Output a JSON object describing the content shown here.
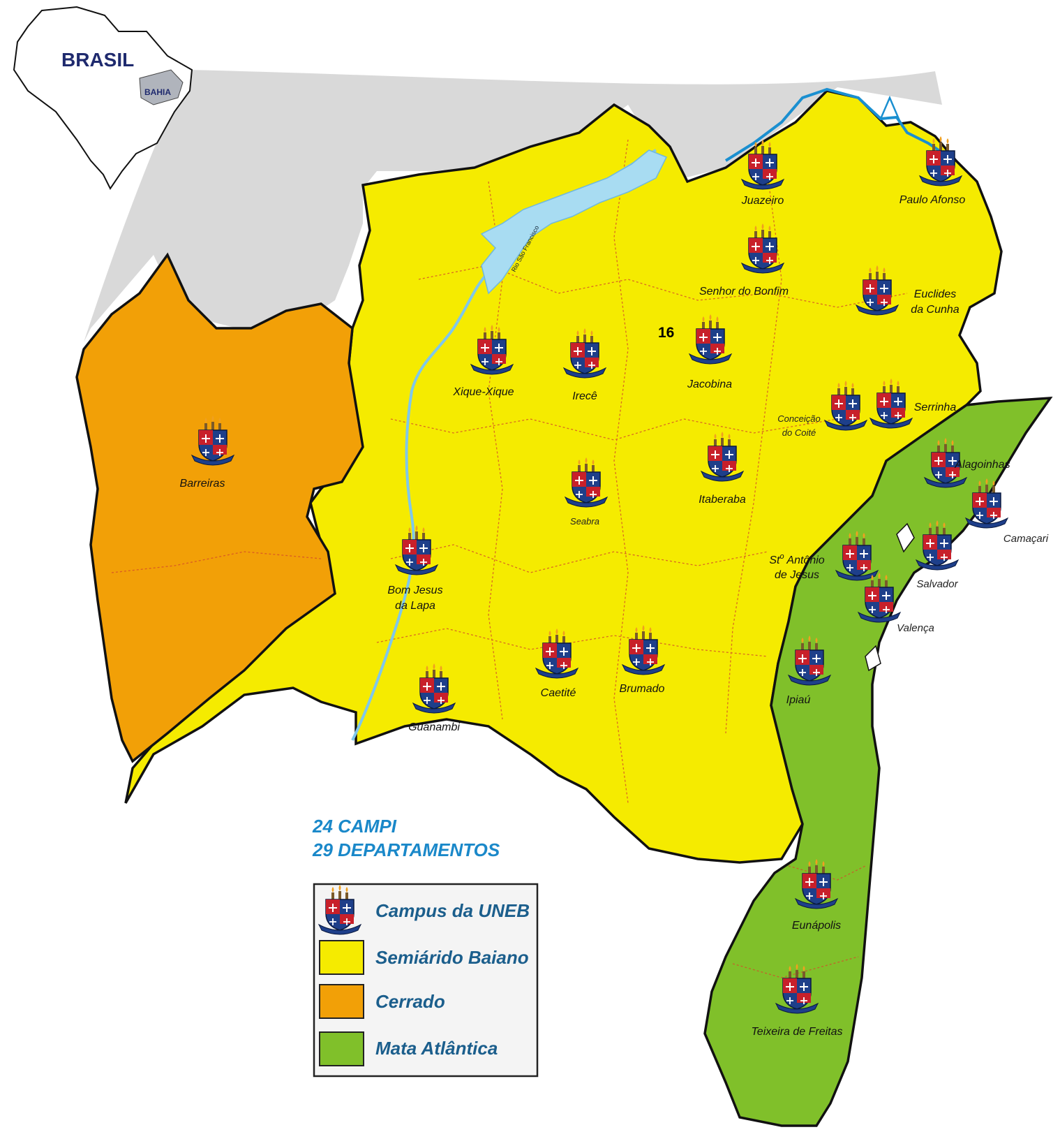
{
  "inset": {
    "country_label": "BRASIL",
    "state_label": "BAHIA"
  },
  "map": {
    "region_number": "16",
    "river_label": "Rio São Francisco",
    "stats": {
      "campi": "24 CAMPI",
      "departamentos": "29 DEPARTAMENTOS"
    }
  },
  "campuses": [
    {
      "name": "Juazeiro"
    },
    {
      "name": "Paulo Afonso"
    },
    {
      "name": "Senhor do Bonfim"
    },
    {
      "name": "Euclides",
      "name2": "da Cunha"
    },
    {
      "name": "Jacobina"
    },
    {
      "name": "Xique-Xique"
    },
    {
      "name": "Irecê"
    },
    {
      "name": "Conceição",
      "name2": "do Coité"
    },
    {
      "name": "Serrinha"
    },
    {
      "name": "Alagoinhas"
    },
    {
      "name": "Barreiras"
    },
    {
      "name": "Itaberaba"
    },
    {
      "name": "Seabra"
    },
    {
      "name": "Camaçari"
    },
    {
      "name": "Bom Jesus",
      "name2": "da Lapa"
    },
    {
      "name": "St",
      "sup": "o",
      "rest": " Antônio",
      "name2": "de Jesus"
    },
    {
      "name": "Salvador"
    },
    {
      "name": "Valença"
    },
    {
      "name": "Caetité"
    },
    {
      "name": "Brumado"
    },
    {
      "name": "Guanambi"
    },
    {
      "name": "Ipiaú"
    },
    {
      "name": "Eunápolis"
    },
    {
      "name": "Teixeira de Freitas"
    }
  ],
  "legend": [
    {
      "label": "Campus da UNEB",
      "symbol": "uneb-shield-icon"
    },
    {
      "label": "Semiárido Baiano",
      "color": "#f5eb00"
    },
    {
      "label": "Cerrado",
      "color": "#f2a007"
    },
    {
      "label": "Mata Atlântica",
      "color": "#80c02a"
    }
  ],
  "colors": {
    "semiarido": "#f5eb00",
    "cerrado": "#f2a007",
    "mata_atlantica": "#80c02a",
    "neighbors": "#d9d9d9",
    "river": "#a8dcf2",
    "border": "#111111"
  }
}
